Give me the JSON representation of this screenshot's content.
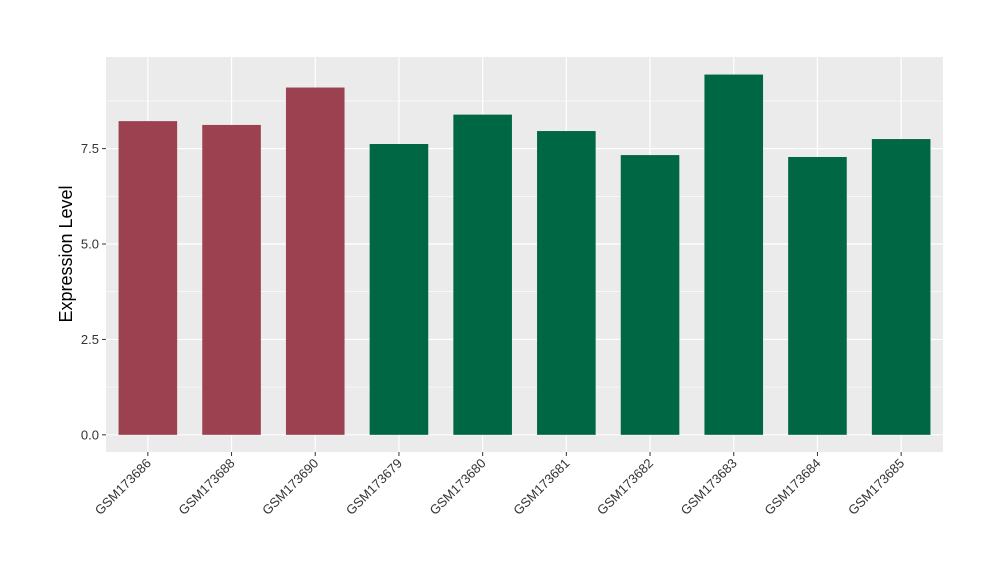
{
  "chart_data": {
    "type": "bar",
    "title": "",
    "xlabel": "",
    "ylabel": "Expression Level",
    "categories": [
      "GSM173686",
      "GSM173688",
      "GSM173690",
      "GSM173679",
      "GSM173680",
      "GSM173681",
      "GSM173682",
      "GSM173683",
      "GSM173684",
      "GSM173685"
    ],
    "values": [
      8.22,
      8.12,
      9.1,
      7.62,
      8.39,
      7.96,
      7.33,
      9.44,
      7.28,
      7.75
    ],
    "groups": [
      1,
      1,
      1,
      2,
      2,
      2,
      2,
      2,
      2,
      2
    ],
    "group_colors": {
      "1": "#9b4150",
      "2": "#006744"
    },
    "ylim": [
      -0.45,
      9.9
    ],
    "yticks": [
      0.0,
      2.5,
      5.0,
      7.5
    ],
    "ytick_labels": [
      "0.0",
      "2.5",
      "5.0",
      "7.5"
    ],
    "grid": true,
    "panel_background": "#ebebeb",
    "legend": "none"
  }
}
